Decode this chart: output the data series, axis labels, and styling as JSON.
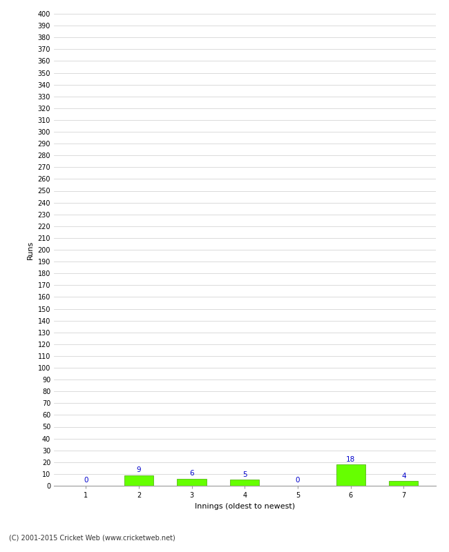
{
  "categories": [
    "1",
    "2",
    "3",
    "4",
    "5",
    "6",
    "7"
  ],
  "values": [
    0,
    9,
    6,
    5,
    0,
    18,
    4
  ],
  "bar_color": "#66ff00",
  "bar_edge_color": "#44aa00",
  "xlabel": "Innings (oldest to newest)",
  "ylabel": "Runs",
  "ylim": [
    0,
    400
  ],
  "ytick_step": 10,
  "value_color": "#0000cc",
  "value_fontsize": 7.5,
  "footer": "(C) 2001-2015 Cricket Web (www.cricketweb.net)",
  "background_color": "#ffffff",
  "grid_color": "#cccccc",
  "tick_fontsize": 7,
  "axis_label_fontsize": 8
}
